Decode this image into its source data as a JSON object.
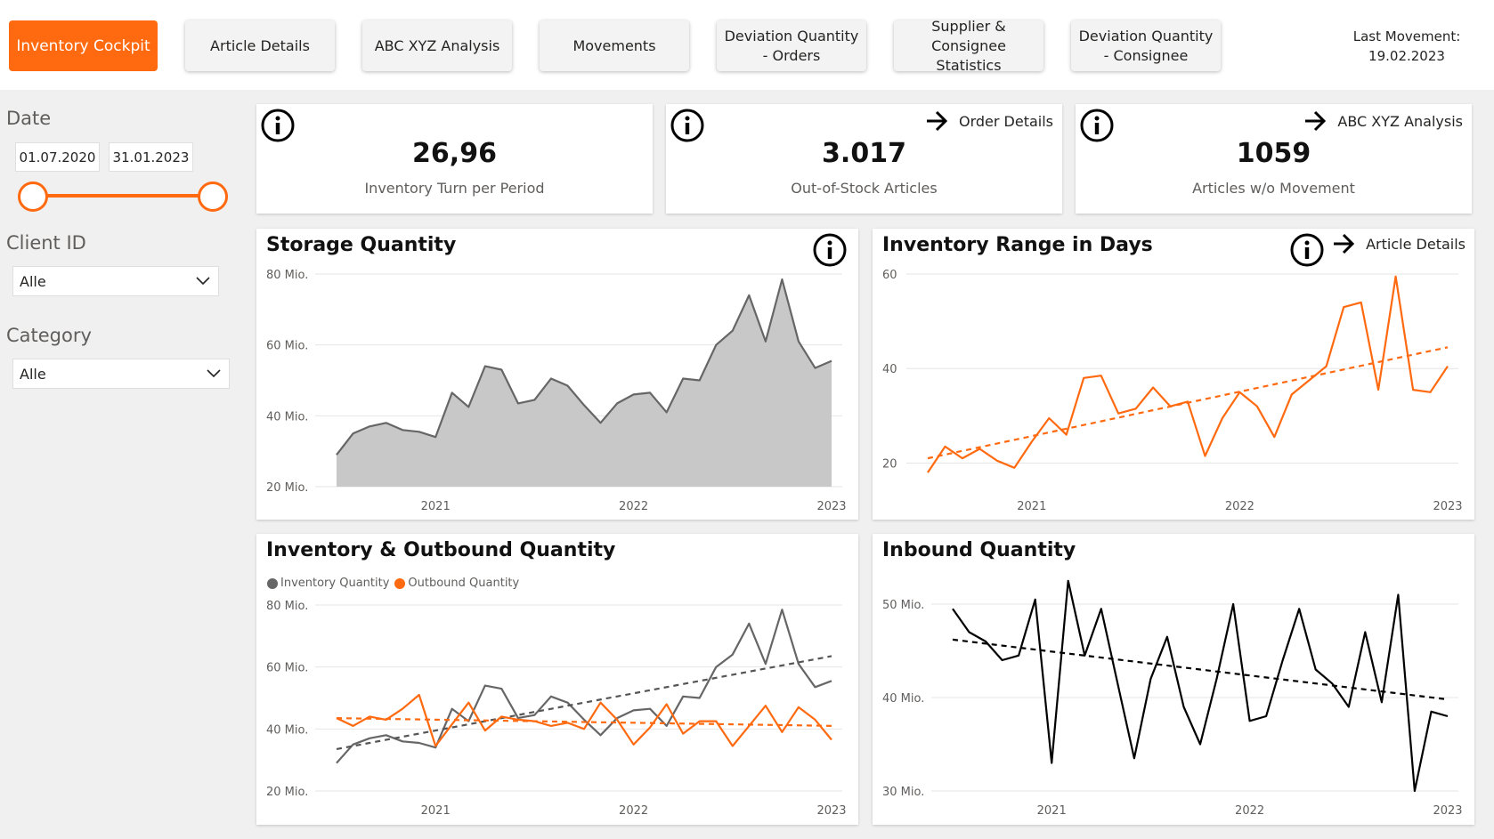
{
  "colors": {
    "accent": "#ff6a10",
    "gray_line": "#666666",
    "gray_fill": "#c8c8c8",
    "black_line": "#000000"
  },
  "nav": {
    "tabs": [
      {
        "label": "Inventory Cockpit"
      },
      {
        "label": "Article Details"
      },
      {
        "label": "ABC XYZ Analysis"
      },
      {
        "label": "Movements"
      },
      {
        "label": "Deviation Quantity - Orders"
      },
      {
        "label": "Supplier & Consignee Statistics"
      },
      {
        "label": "Deviation Quantity - Consignee"
      }
    ],
    "last_movement_label": "Last Movement:",
    "last_movement_date": "19.02.2023"
  },
  "filters": {
    "date_label": "Date",
    "date_from": "01.07.2020",
    "date_to": "31.01.2023",
    "client_label": "Client ID",
    "client_value": "Alle",
    "category_label": "Category",
    "category_value": "Alle"
  },
  "kpis": [
    {
      "value": "26,96",
      "label": "Inventory Turn per Period"
    },
    {
      "value": "3.017",
      "label": "Out-of-Stock Articles",
      "link": "Order Details"
    },
    {
      "value": "1059",
      "label": "Articles w/o Movement",
      "link": "ABC XYZ Analysis"
    }
  ],
  "range_link": "Article Details",
  "chart_data": [
    {
      "type": "area",
      "title": "Storage Quantity",
      "x_ticks": [
        "2021",
        "2022",
        "2023"
      ],
      "y_ticks": [
        "80 Mio.",
        "60 Mio.",
        "40 Mio.",
        "20 Mio."
      ],
      "ylim": [
        20,
        80
      ],
      "series": [
        {
          "values": [
            29,
            35,
            37,
            38,
            36,
            35.5,
            34,
            46.5,
            42.5,
            54,
            53,
            43.5,
            44.5,
            50.5,
            48.5,
            43,
            38,
            43.5,
            46,
            46.5,
            41,
            50.5,
            50,
            60,
            64,
            74,
            61,
            78.5,
            61,
            53.5,
            55.5
          ]
        }
      ]
    },
    {
      "type": "line",
      "title": "Inventory Range in Days",
      "x_ticks": [
        "2021",
        "2022",
        "2023"
      ],
      "y_ticks": [
        "60",
        "40",
        "20"
      ],
      "ylim": [
        15,
        60
      ],
      "series": [
        {
          "values": [
            18,
            23.5,
            21,
            23,
            20.5,
            19,
            24.5,
            29.5,
            26,
            38,
            38.5,
            30.5,
            31.5,
            36,
            32,
            33,
            21.5,
            29.5,
            35,
            32,
            25.5,
            34.5,
            37.5,
            40.5,
            53,
            54,
            35.5,
            59.5,
            35.5,
            35,
            40.5
          ]
        }
      ],
      "trend": [
        21,
        44.5
      ]
    },
    {
      "type": "line",
      "title": "Inventory & Outbound Quantity",
      "x_ticks": [
        "2021",
        "2022",
        "2023"
      ],
      "y_ticks": [
        "80 Mio.",
        "60 Mio.",
        "40 Mio.",
        "20 Mio."
      ],
      "ylim": [
        20,
        80
      ],
      "series": [
        {
          "name": "Inventory Quantity",
          "values": [
            29,
            35,
            37,
            38,
            36,
            35.5,
            34,
            46.5,
            42.5,
            54,
            53,
            43.5,
            44.5,
            50.5,
            48.5,
            43,
            38,
            43.5,
            46,
            46.5,
            41,
            50.5,
            50,
            60,
            64,
            74,
            61,
            78.5,
            61,
            53.5,
            55.5
          ],
          "trend": [
            33.5,
            63.5
          ]
        },
        {
          "name": "Outbound Quantity",
          "values": [
            43.5,
            41,
            44,
            43,
            46.5,
            51,
            34.5,
            41.5,
            48.5,
            39.5,
            44,
            43,
            42.5,
            41,
            42,
            40,
            48.5,
            43,
            35,
            40.5,
            48,
            38.5,
            42.5,
            42.5,
            34.5,
            41,
            47.5,
            39,
            47,
            43,
            36.5
          ],
          "trend": [
            43.5,
            41
          ]
        }
      ]
    },
    {
      "type": "line",
      "title": "Inbound Quantity",
      "x_ticks": [
        "2021",
        "2022",
        "2023"
      ],
      "y_ticks": [
        "50 Mio.",
        "40 Mio.",
        "30 Mio."
      ],
      "ylim": [
        30,
        52
      ],
      "series": [
        {
          "values": [
            49.5,
            47,
            46,
            44,
            44.5,
            50.5,
            33,
            52.5,
            44.5,
            49.5,
            41.5,
            33.5,
            42,
            46.5,
            39,
            35,
            42,
            50,
            37.5,
            38,
            44,
            49.5,
            43,
            41.5,
            39,
            47,
            39.5,
            51,
            30,
            38.5,
            38
          ]
        }
      ],
      "trend": [
        46.2,
        39.8
      ]
    }
  ]
}
